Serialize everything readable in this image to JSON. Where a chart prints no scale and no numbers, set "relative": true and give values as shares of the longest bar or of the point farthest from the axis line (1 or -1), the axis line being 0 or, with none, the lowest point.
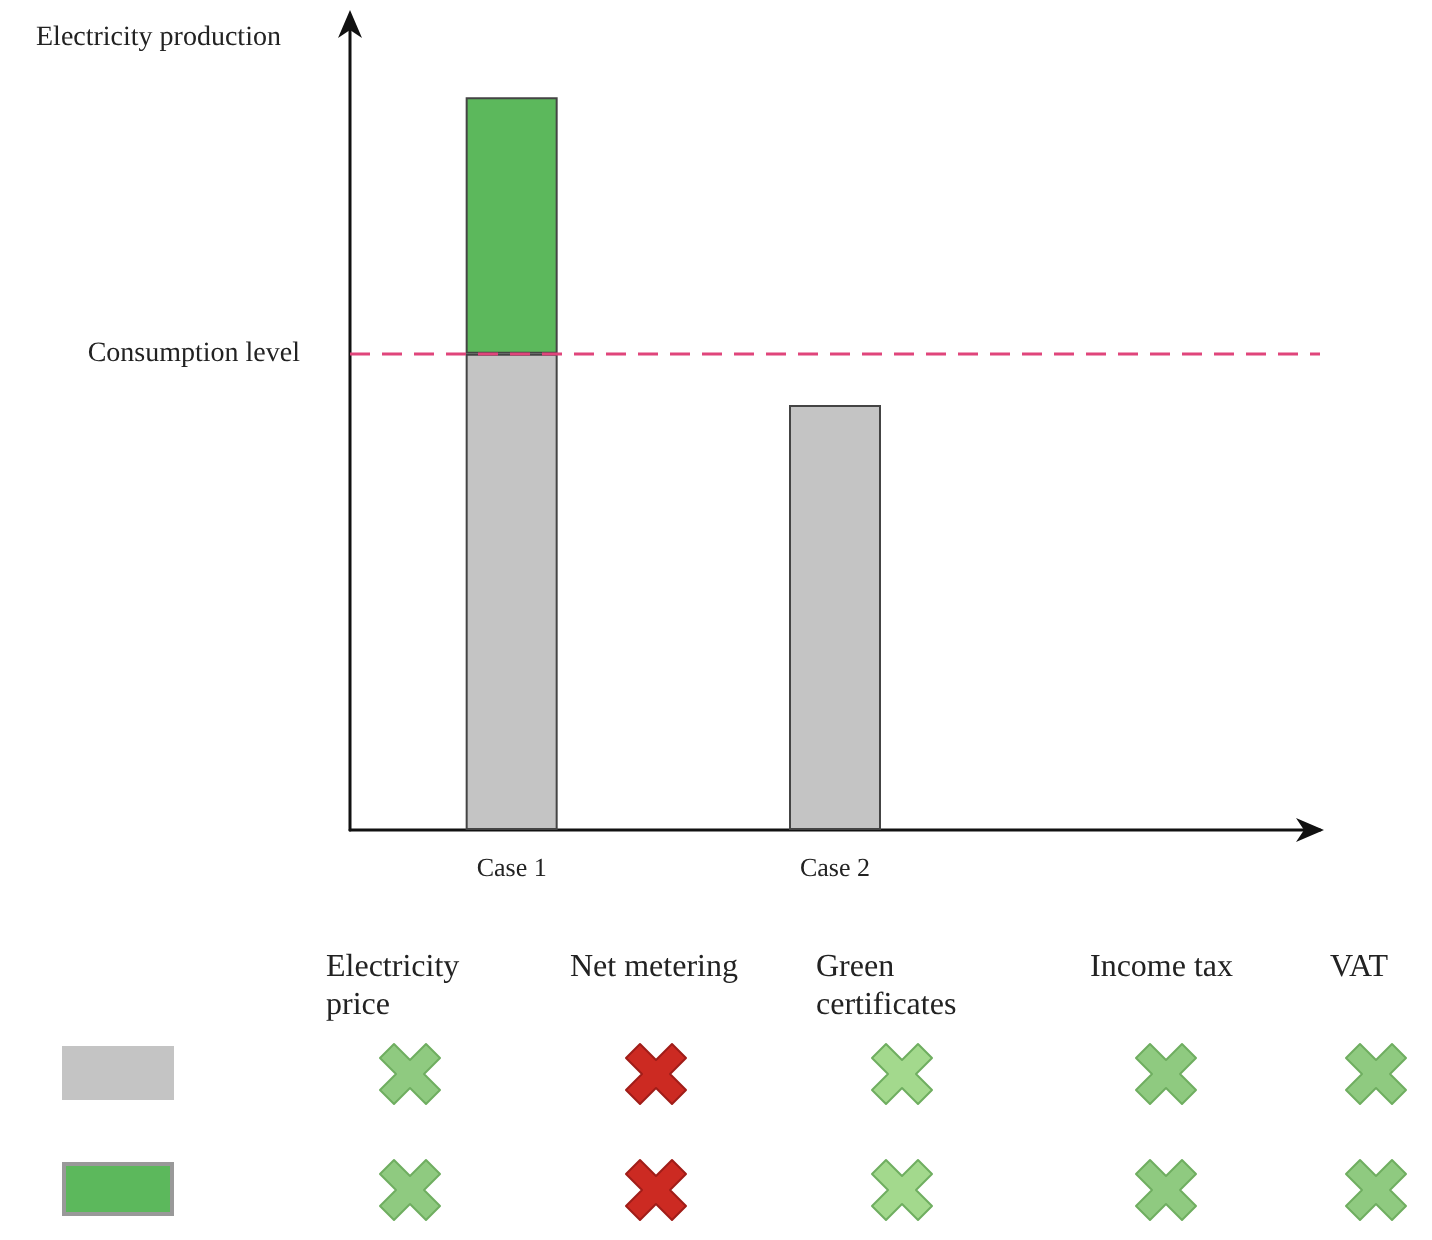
{
  "chart_data": {
    "type": "bar",
    "stacked": true,
    "relative": true,
    "ylabel": "Electricity production",
    "categories": [
      "Case 1",
      "Case 2",
      null
    ],
    "series": [
      {
        "color": "#c4c4c4",
        "values": [
          0.65,
          0.58,
          null
        ]
      },
      {
        "color": "#5cb85c",
        "values": [
          0.35,
          null,
          null
        ]
      }
    ],
    "ref_lines": [
      {
        "axis": "y",
        "value": 0.65,
        "label": "Consumption level",
        "color": "#e0457b",
        "line_style": "dashed"
      }
    ],
    "annotations": [
      "Electricity price",
      "Net metering",
      "Green certificates",
      "Income tax",
      "VAT"
    ],
    "grid": false
  }
}
